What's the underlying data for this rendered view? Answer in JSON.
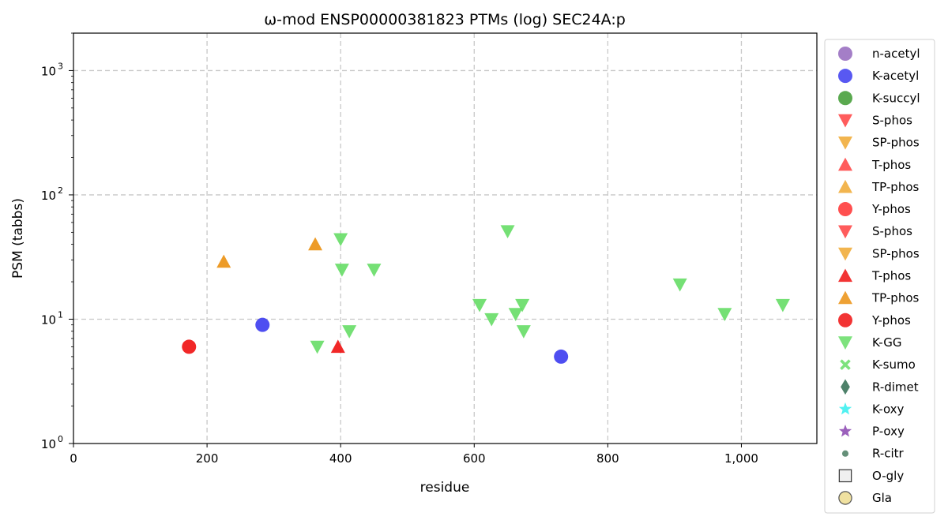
{
  "chart_data": {
    "type": "scatter",
    "title": "ω-mod ENSP00000381823 PTMs (log) SEC24A:p",
    "xlabel": "residue",
    "ylabel": "PSM (tabbs)",
    "xlim": [
      0,
      1113
    ],
    "ylim": [
      1,
      2000
    ],
    "yscale": "log",
    "grid": true,
    "legend_position": "outside-right",
    "x_ticks": [
      0,
      200,
      400,
      600,
      800,
      1000
    ],
    "x_tick_labels": [
      "0",
      "200",
      "400",
      "600",
      "800",
      "1,000"
    ],
    "y_ticks": [
      1,
      10,
      100,
      1000
    ],
    "y_tick_labels": [
      {
        "base": "10",
        "exp": "0"
      },
      {
        "base": "10",
        "exp": "1"
      },
      {
        "base": "10",
        "exp": "2"
      },
      {
        "base": "10",
        "exp": "3"
      }
    ],
    "series": [
      {
        "name": "n-acetyl",
        "marker": "circle",
        "color": "#9467bd",
        "points": []
      },
      {
        "name": "K-acetyl",
        "marker": "circle",
        "color": "#3b3bf0",
        "points": [
          [
            283,
            9
          ],
          [
            730,
            5
          ]
        ]
      },
      {
        "name": "K-succyl",
        "marker": "circle",
        "color": "#3d9a30",
        "points": []
      },
      {
        "name": "S-phos",
        "marker": "triangle-down",
        "color": "#ff4040",
        "points": []
      },
      {
        "name": "SP-phos",
        "marker": "triangle-down",
        "color": "#f0a830",
        "points": []
      },
      {
        "name": "T-phos",
        "marker": "triangle-up",
        "color": "#ff4040",
        "points": []
      },
      {
        "name": "TP-phos",
        "marker": "triangle-up",
        "color": "#f0a830",
        "points": []
      },
      {
        "name": "Y-phos",
        "marker": "circle",
        "color": "#ff3030",
        "points": []
      },
      {
        "name": "S-phos",
        "marker": "triangle-down",
        "color": "#ff4040",
        "points": []
      },
      {
        "name": "SP-phos",
        "marker": "triangle-down",
        "color": "#f0a830",
        "points": []
      },
      {
        "name": "T-phos",
        "marker": "triangle-up",
        "color": "#f01010",
        "points": [
          [
            396,
            6
          ]
        ]
      },
      {
        "name": "TP-phos",
        "marker": "triangle-up",
        "color": "#eb9010",
        "points": [
          [
            225,
            29
          ],
          [
            362,
            40
          ]
        ]
      },
      {
        "name": "Y-phos",
        "marker": "circle",
        "color": "#f01010",
        "points": [
          [
            173,
            6
          ]
        ]
      },
      {
        "name": "K-GG",
        "marker": "triangle-down",
        "color": "#66dd66",
        "points": [
          [
            400,
            44
          ],
          [
            402,
            25
          ],
          [
            450,
            25
          ],
          [
            365,
            6
          ],
          [
            413,
            8
          ],
          [
            608,
            13
          ],
          [
            626,
            10
          ],
          [
            650,
            51
          ],
          [
            662,
            11
          ],
          [
            672,
            13
          ],
          [
            674,
            8
          ],
          [
            908,
            19
          ],
          [
            975,
            11
          ],
          [
            1062,
            13
          ]
        ]
      },
      {
        "name": "K-sumo",
        "marker": "x",
        "color": "#66dd66",
        "points": []
      },
      {
        "name": "R-dimet",
        "marker": "diamond",
        "color": "#2f6b50",
        "points": []
      },
      {
        "name": "K-oxy",
        "marker": "star",
        "color": "#33eeee",
        "points": []
      },
      {
        "name": "P-oxy",
        "marker": "star",
        "color": "#8a44b0",
        "points": []
      },
      {
        "name": "R-citr",
        "marker": "small-circle",
        "color": "#4a7d62",
        "points": []
      },
      {
        "name": "O-gly",
        "marker": "square-open",
        "color": "#333333",
        "points": []
      },
      {
        "name": "Gla",
        "marker": "circle-open",
        "color": "#f0e1a0",
        "points": []
      }
    ]
  }
}
